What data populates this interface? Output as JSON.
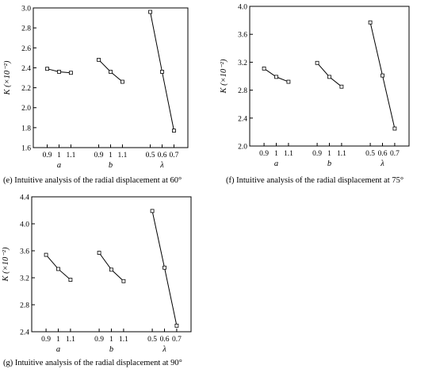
{
  "chart_data": [
    {
      "type": "line",
      "ylabel": "K (×10⁻²)",
      "ylim": [
        1.6,
        3.0
      ],
      "yticks": [
        "1.6",
        "1.8",
        "2.0",
        "2.2",
        "2.4",
        "2.6",
        "2.8",
        "3.0"
      ],
      "ytick_values": [
        1.6,
        1.8,
        2.0,
        2.2,
        2.4,
        2.6,
        2.8,
        3.0
      ],
      "groups": [
        {
          "name": "a",
          "tick_labels": [
            "0.9",
            "1",
            "1.1"
          ],
          "values": [
            2.39,
            2.36,
            2.35
          ]
        },
        {
          "name": "b",
          "tick_labels": [
            "0.9",
            "1",
            "1.1"
          ],
          "values": [
            2.48,
            2.36,
            2.26
          ]
        },
        {
          "name": "λ",
          "tick_labels": [
            "0.5",
            "0.6",
            "0.7"
          ],
          "values": [
            2.96,
            2.36,
            1.77
          ]
        }
      ],
      "grid": false,
      "marker": "open-square",
      "caption": "(e) Intuitive analysis of the radial displacement at  60°"
    },
    {
      "type": "line",
      "ylabel": "K (×10⁻²)",
      "ylim": [
        2.0,
        4.0
      ],
      "yticks": [
        "2.0",
        "2.4",
        "2.8",
        "3.2",
        "3.6",
        "4.0"
      ],
      "ytick_values": [
        2.0,
        2.4,
        2.8,
        3.2,
        3.6,
        4.0
      ],
      "groups": [
        {
          "name": "a",
          "tick_labels": [
            "0.9",
            "1",
            "1.1"
          ],
          "values": [
            3.11,
            2.99,
            2.92
          ]
        },
        {
          "name": "b",
          "tick_labels": [
            "0.9",
            "1",
            "1.1"
          ],
          "values": [
            3.19,
            2.99,
            2.85
          ]
        },
        {
          "name": "λ",
          "tick_labels": [
            "0.5",
            "0.6",
            "0.7"
          ],
          "values": [
            3.77,
            3.01,
            2.25
          ]
        }
      ],
      "grid": false,
      "marker": "open-square",
      "caption": "(f) Intuitive analysis of the radial displacement at  75°"
    },
    {
      "type": "line",
      "ylabel": "K (×10⁻²)",
      "ylim": [
        2.4,
        4.4
      ],
      "yticks": [
        "2.4",
        "2.8",
        "3.2",
        "3.6",
        "4.0",
        "4.4"
      ],
      "ytick_values": [
        2.4,
        2.8,
        3.2,
        3.6,
        4.0,
        4.4
      ],
      "groups": [
        {
          "name": "a",
          "tick_labels": [
            "0.9",
            "1",
            "1.1"
          ],
          "values": [
            3.54,
            3.33,
            3.17
          ]
        },
        {
          "name": "b",
          "tick_labels": [
            "0.9",
            "1",
            "1.1"
          ],
          "values": [
            3.57,
            3.32,
            3.15
          ]
        },
        {
          "name": "λ",
          "tick_labels": [
            "0.5",
            "0.6",
            "0.7"
          ],
          "values": [
            4.19,
            3.35,
            2.49
          ]
        }
      ],
      "grid": false,
      "marker": "open-square",
      "caption": "(g) Intuitive analysis of the radial displacement at  90°"
    }
  ]
}
